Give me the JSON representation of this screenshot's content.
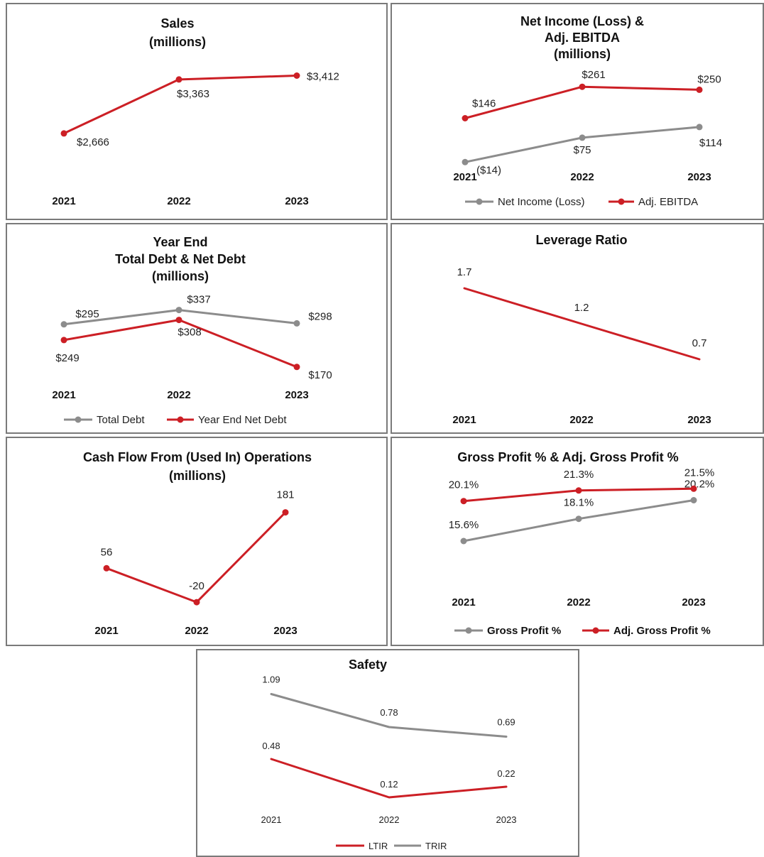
{
  "colors": {
    "red": "#cc1f25",
    "gray": "#8c8c8c",
    "border": "#7a7a7a"
  },
  "chart_data": [
    {
      "id": "sales",
      "type": "line",
      "title": [
        "Sales",
        "(millions)"
      ],
      "categories": [
        "2021",
        "2022",
        "2023"
      ],
      "series": [
        {
          "color": "#cc1f25",
          "values": [
            2666,
            3363,
            3412
          ],
          "labels": [
            "$2,666",
            "$3,363",
            "$3,412"
          ],
          "markers": true
        }
      ],
      "legend": []
    },
    {
      "id": "net_income",
      "type": "line",
      "title": [
        "Net Income (Loss) &",
        "Adj. EBITDA",
        "(millions)"
      ],
      "categories": [
        "2021",
        "2022",
        "2023"
      ],
      "series": [
        {
          "name": "Net Income (Loss)",
          "color": "#8c8c8c",
          "values": [
            -14,
            75,
            114
          ],
          "labels": [
            "($14)",
            "$75",
            "$114"
          ],
          "markers": true
        },
        {
          "name": "Adj. EBITDA",
          "color": "#cc1f25",
          "values": [
            146,
            261,
            250
          ],
          "labels": [
            "$146",
            "$261",
            "$250"
          ],
          "markers": true
        }
      ],
      "legend": [
        "Net Income (Loss)",
        "Adj. EBITDA"
      ]
    },
    {
      "id": "debt",
      "type": "line",
      "title": [
        "Year End",
        "Total Debt & Net Debt",
        "(millions)"
      ],
      "categories": [
        "2021",
        "2022",
        "2023"
      ],
      "series": [
        {
          "name": "Total Debt",
          "color": "#8c8c8c",
          "values": [
            295,
            337,
            298
          ],
          "labels": [
            "$295",
            "$337",
            "$298"
          ],
          "markers": true
        },
        {
          "name": "Year End Net Debt",
          "color": "#cc1f25",
          "values": [
            249,
            308,
            170
          ],
          "labels": [
            "$249",
            "$308",
            "$170"
          ],
          "markers": true
        }
      ],
      "legend": [
        "Total Debt",
        "Year End Net Debt"
      ]
    },
    {
      "id": "leverage",
      "type": "line",
      "title": [
        "Leverage Ratio"
      ],
      "categories": [
        "2021",
        "2022",
        "2023"
      ],
      "series": [
        {
          "color": "#cc1f25",
          "values": [
            1.7,
            1.2,
            0.7
          ],
          "labels": [
            "1.7",
            "1.2",
            "0.7"
          ],
          "markers": false
        }
      ],
      "legend": []
    },
    {
      "id": "cash_flow",
      "type": "line",
      "title": [
        "Cash Flow From (Used In) Operations",
        "(millions)"
      ],
      "categories": [
        "2021",
        "2022",
        "2023"
      ],
      "series": [
        {
          "color": "#cc1f25",
          "values": [
            56,
            -20,
            181
          ],
          "labels": [
            "56",
            "-20",
            "181"
          ],
          "markers": true
        }
      ],
      "legend": []
    },
    {
      "id": "gross_profit",
      "type": "line",
      "title": [
        "Gross Profit % & Adj. Gross Profit %"
      ],
      "categories": [
        "2021",
        "2022",
        "2023"
      ],
      "series": [
        {
          "name": "Gross Profit %",
          "color": "#8c8c8c",
          "values": [
            15.6,
            18.1,
            20.2
          ],
          "labels": [
            "15.6%",
            "18.1%",
            "20.2%"
          ],
          "markers": true
        },
        {
          "name": "Adj. Gross Profit %",
          "color": "#cc1f25",
          "values": [
            20.1,
            21.3,
            21.5
          ],
          "labels": [
            "20.1%",
            "21.3%",
            "21.5%"
          ],
          "markers": true
        }
      ],
      "legend": [
        "Gross Profit %",
        "Adj. Gross Profit %"
      ]
    },
    {
      "id": "safety",
      "type": "line",
      "title": [
        "Safety"
      ],
      "categories": [
        "2021",
        "2022",
        "2023"
      ],
      "series": [
        {
          "name": "LTIR",
          "color": "#cc1f25",
          "values": [
            0.48,
            0.12,
            0.22
          ],
          "labels": [
            "0.48",
            "0.12",
            "0.22"
          ],
          "markers": false
        },
        {
          "name": "TRIR",
          "color": "#8c8c8c",
          "values": [
            1.09,
            0.78,
            0.69
          ],
          "labels": [
            "1.09",
            "0.78",
            "0.69"
          ],
          "markers": false
        }
      ],
      "legend": [
        "LTIR",
        "TRIR"
      ]
    }
  ]
}
